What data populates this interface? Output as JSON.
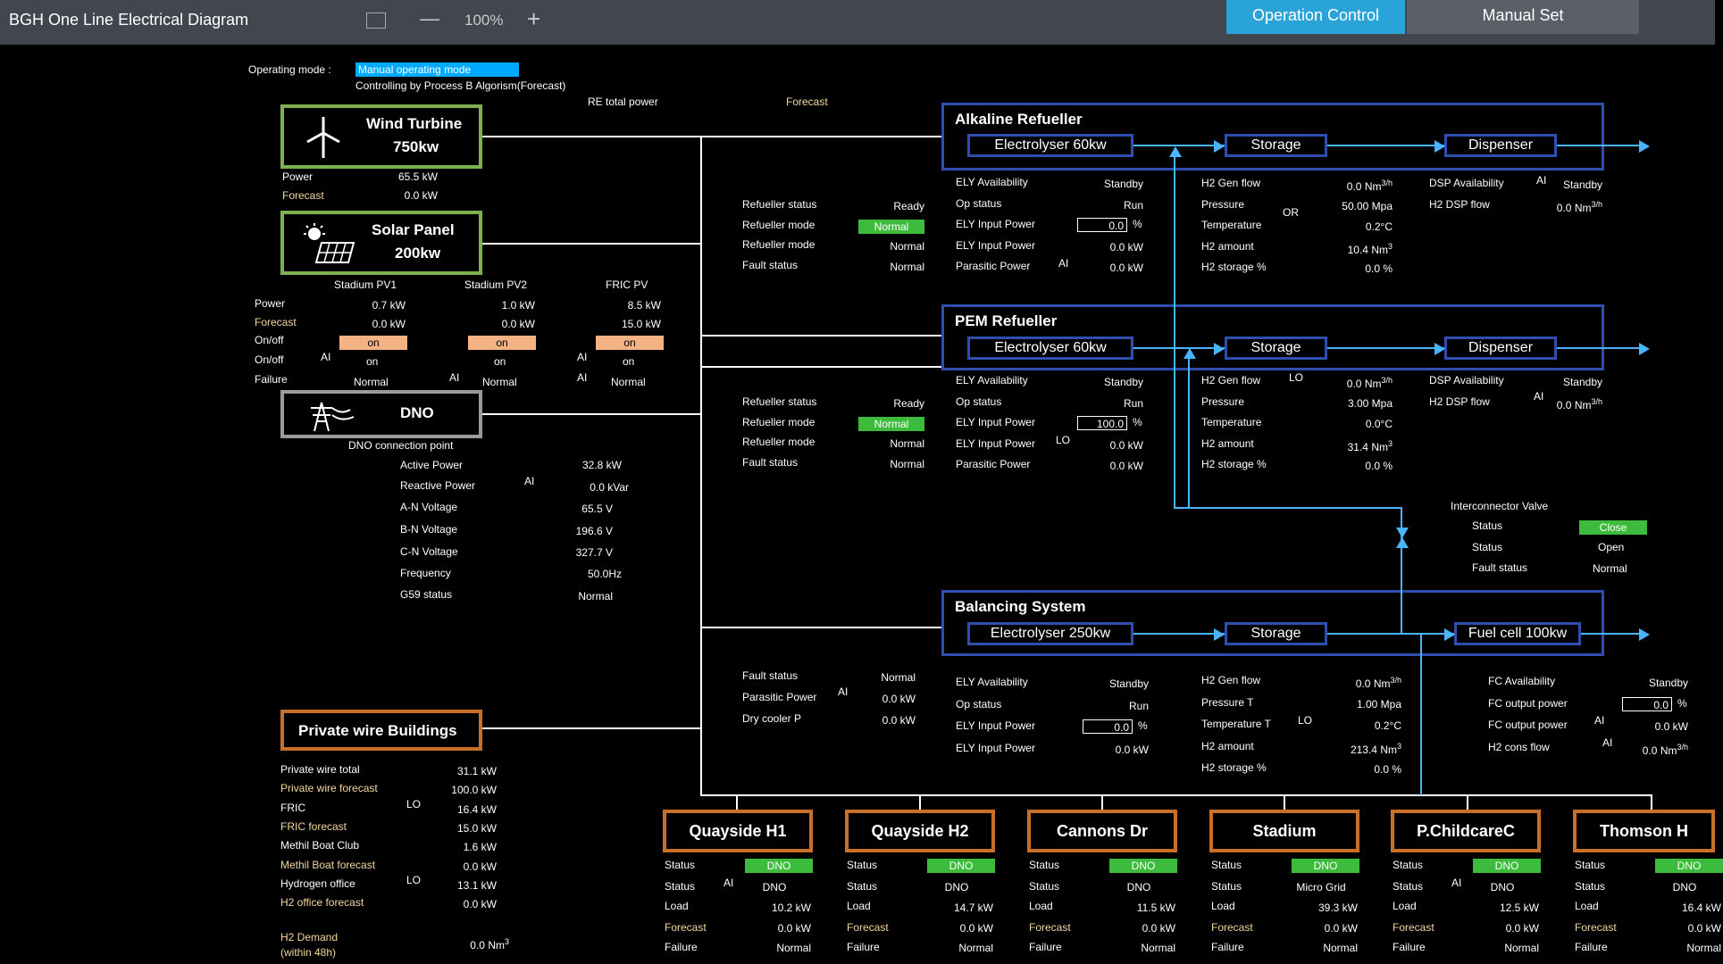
{
  "window": {
    "title": "BGH One Line Electrical Diagram",
    "zoom": "100%",
    "minus": "—",
    "plus": "+"
  },
  "tabs": [
    {
      "label": "Operation Control",
      "active": true
    },
    {
      "label": "Manual Set",
      "active": false
    }
  ],
  "mode": {
    "label": "Operating mode :",
    "value": "Manual operating mode",
    "sub": "Controlling by Process B Algorism(Forecast)"
  },
  "header_labels": {
    "re_total": "RE total power",
    "forecast": "Forecast"
  },
  "wind": {
    "name": "Wind Turbine",
    "rating": "750kw",
    "rows": [
      {
        "k": "Power",
        "v": "65.5 kW"
      },
      {
        "k": "Forecast",
        "v": "0.0 kW"
      }
    ]
  },
  "solar": {
    "name": "Solar Panel",
    "rating": "200kw",
    "columns": [
      "Stadium PV1",
      "Stadium PV2",
      "FRIC PV"
    ],
    "rows": [
      {
        "k": "Power",
        "v": [
          "0.7 kW",
          "1.0 kW",
          "8.5 kW"
        ]
      },
      {
        "k": "Forecast",
        "v": [
          "0.0 kW",
          "0.0 kW",
          "15.0 kW"
        ]
      }
    ],
    "onoff_label": "On/off",
    "onoff_btn": [
      "on",
      "on",
      "on"
    ],
    "onoff2_label": "On/off",
    "onoff2": [
      "on",
      "on",
      "on"
    ],
    "failure_label": "Failure",
    "failure": [
      "Normal",
      "Normal",
      "Normal"
    ],
    "ai": "AI"
  },
  "dno": {
    "name": "DNO",
    "conn": "DNO connection point",
    "rows": [
      {
        "k": "Active Power",
        "v": "32.8 kW"
      },
      {
        "k": "Reactive Power",
        "v": "0.0 kVar"
      },
      {
        "k": "A-N Voltage",
        "v": "65.5 V"
      },
      {
        "k": "B-N Voltage",
        "v": "196.6 V"
      },
      {
        "k": "C-N Voltage",
        "v": "327.7 V"
      },
      {
        "k": "Frequency",
        "v": "50.0Hz"
      },
      {
        "k": "G59 status",
        "v": "Normal"
      }
    ],
    "ai": "AI"
  },
  "pw": {
    "name": "Private wire Buildings",
    "rows": [
      {
        "k": "Private wire total",
        "v": "31.1 kW",
        "g": false
      },
      {
        "k": "Private wire forecast",
        "v": "100.0 kW",
        "g": true
      },
      {
        "k": "FRIC",
        "v": "16.4 kW",
        "g": false
      },
      {
        "k": "FRIC forecast",
        "v": "15.0 kW",
        "g": true
      },
      {
        "k": "Methil Boat Club",
        "v": "1.6 kW",
        "g": false
      },
      {
        "k": "Methil Boat forecast",
        "v": "0.0 kW",
        "g": true
      },
      {
        "k": "Hydrogen office",
        "v": "13.1 kW",
        "g": false
      },
      {
        "k": "H2 office forecast",
        "v": "0.0 kW",
        "g": true
      }
    ],
    "demand_k": "H2 Demand",
    "demand_k2": "(within 48h)",
    "demand_v": "0.0 Nm",
    "lo": "LO"
  },
  "alk": {
    "title": "Alkaline Refueller",
    "ely": "Electrolyser  60kw",
    "storage": "Storage",
    "disp": "Dispenser",
    "status": [
      {
        "k": "Refueller status",
        "v": "Ready"
      },
      {
        "k": "Refueller mode",
        "v": "Normal"
      },
      {
        "k": "Refueller mode",
        "v": "Normal"
      },
      {
        "k": "Fault status",
        "v": "Normal"
      }
    ],
    "ely_rows": [
      {
        "k": "ELY Availability",
        "v": "Standby"
      },
      {
        "k": "Op status",
        "v": "Run"
      },
      {
        "k": "ELY Input Power",
        "v": "0.0"
      },
      {
        "k": "ELY Input Power",
        "v": "0.0 kW"
      },
      {
        "k": "Parasitic Power",
        "v": "0.0 kW"
      }
    ],
    "h2_rows": [
      {
        "k": "H2 Gen flow",
        "v": "0.0 Nm"
      },
      {
        "k": "Pressure",
        "v": "50.00 Mpa"
      },
      {
        "k": "Temperature",
        "v": "0.2°C"
      },
      {
        "k": "H2 amount",
        "v": "10.4 Nm"
      },
      {
        "k": "H2 storage %",
        "v": "0.0 %"
      }
    ],
    "dsp_rows": [
      {
        "k": "DSP Availability",
        "v": "Standby"
      },
      {
        "k": "H2 DSP flow",
        "v": "0.0 Nm"
      }
    ],
    "or": "OR",
    "ai": "AI"
  },
  "pem": {
    "title": "PEM Refueller",
    "ely": "Electrolyser  60kw",
    "storage": "Storage",
    "disp": "Dispenser",
    "status": [
      {
        "k": "Refueller status",
        "v": "Ready"
      },
      {
        "k": "Refueller mode",
        "v": "Normal"
      },
      {
        "k": "Refueller mode",
        "v": "Normal"
      },
      {
        "k": "Fault status",
        "v": "Normal"
      }
    ],
    "ely_rows": [
      {
        "k": "ELY Availability",
        "v": "Standby"
      },
      {
        "k": "Op status",
        "v": "Run"
      },
      {
        "k": "ELY Input Power",
        "v": "100.0"
      },
      {
        "k": "ELY Input Power",
        "v": "0.0 kW"
      },
      {
        "k": "Parasitic Power",
        "v": "0.0 kW"
      }
    ],
    "h2_rows": [
      {
        "k": "H2 Gen flow",
        "v": "0.0 Nm"
      },
      {
        "k": "Pressure",
        "v": "3.00 Mpa"
      },
      {
        "k": "Temperature",
        "v": "0.0°C"
      },
      {
        "k": "H2 amount",
        "v": "31.4 Nm"
      },
      {
        "k": "H2 storage %",
        "v": "0.0 %"
      }
    ],
    "dsp_rows": [
      {
        "k": "DSP Availability",
        "v": "Standby"
      },
      {
        "k": "H2 DSP flow",
        "v": "0.0 Nm"
      }
    ],
    "lo": "LO",
    "ai": "AI"
  },
  "valve": {
    "title": "Interconnector Valve",
    "rows": [
      {
        "k": "Status",
        "v": "Close"
      },
      {
        "k": "Status",
        "v": "Open"
      },
      {
        "k": "Fault status",
        "v": "Normal"
      }
    ]
  },
  "bal": {
    "title": "Balancing System",
    "ely": "Electrolyser  250kw",
    "storage": "Storage",
    "fc": "Fuel cell  100kw",
    "status": [
      {
        "k": "Fault status",
        "v": "Normal"
      },
      {
        "k": "Parasitic Power",
        "v": "0.0 kW"
      },
      {
        "k": "Dry cooler P",
        "v": "0.0 kW"
      }
    ],
    "ely_rows": [
      {
        "k": "ELY Availability",
        "v": "Standby"
      },
      {
        "k": "Op status",
        "v": "Run"
      },
      {
        "k": "ELY Input Power",
        "v": "0.0"
      },
      {
        "k": "ELY Input Power",
        "v": "0.0 kW"
      }
    ],
    "h2_rows": [
      {
        "k": "H2 Gen flow",
        "v": "0.0 Nm"
      },
      {
        "k": "Pressure T",
        "v": "1.00 Mpa"
      },
      {
        "k": "Temperature T",
        "v": "0.2°C"
      },
      {
        "k": "H2 amount",
        "v": "213.4 Nm"
      },
      {
        "k": "H2 storage %",
        "v": "0.0 %"
      }
    ],
    "fc_rows": [
      {
        "k": "FC Availability",
        "v": "Standby"
      },
      {
        "k": "FC output power",
        "v": "0.0"
      },
      {
        "k": "FC output power",
        "v": "0.0 kW"
      },
      {
        "k": "H2 cons flow",
        "v": "0.0 Nm"
      }
    ],
    "lo": "LO",
    "ai": "AI"
  },
  "loads": [
    {
      "name": "Quayside H1",
      "s1": "DNO",
      "s2": "DNO",
      "load": "10.2 kW",
      "fc": "0.0 kW",
      "fail": "Normal",
      "ai": "AI"
    },
    {
      "name": "Quayside H2",
      "s1": "DNO",
      "s2": "DNO",
      "load": "14.7 kW",
      "fc": "0.0 kW",
      "fail": "Normal",
      "ai": ""
    },
    {
      "name": "Cannons Dr",
      "s1": "DNO",
      "s2": "DNO",
      "load": "11.5 kW",
      "fc": "0.0 kW",
      "fail": "Normal",
      "ai": ""
    },
    {
      "name": "Stadium",
      "s1": "DNO",
      "s2": "Micro Grid",
      "load": "39.3 kW",
      "fc": "0.0 kW",
      "fail": "Normal",
      "ai": ""
    },
    {
      "name": "P.ChildcareC",
      "s1": "DNO",
      "s2": "DNO",
      "load": "12.5 kW",
      "fc": "0.0 kW",
      "fail": "Normal",
      "ai": "AI"
    },
    {
      "name": "Thomson H",
      "s1": "DNO",
      "s2": "DNO",
      "load": "16.4 kW",
      "fc": "0.0 kW",
      "fail": "Normal",
      "ai": ""
    }
  ],
  "load_labels": {
    "status": "Status",
    "load": "Load",
    "forecast": "Forecast",
    "failure": "Failure"
  },
  "units": {
    "pct": "%",
    "flow": "3/h",
    "cube": "3"
  },
  "colors": {
    "green_border": "#7fb04f",
    "grey_border": "#9a9a9a",
    "orange_border": "#c8702a",
    "navy": "#2f4fb0",
    "pipe": "#4ab5ff",
    "ok_green": "#3dbb3d"
  }
}
